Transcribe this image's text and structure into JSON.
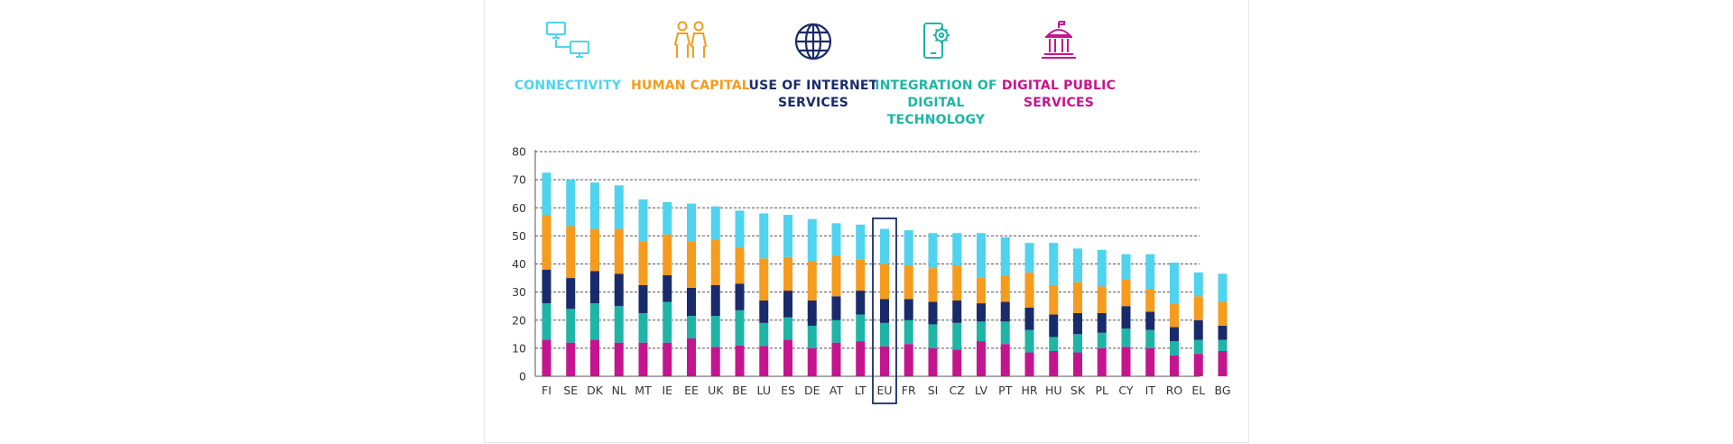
{
  "legend": {
    "items": [
      {
        "key": "connectivity",
        "label": "CONNECTIVITY",
        "color": "#4fd3ee",
        "icon": "connected-computers-icon"
      },
      {
        "key": "human_capital",
        "label": "HUMAN CAPITAL",
        "color": "#f59b1e",
        "icon": "people-icon"
      },
      {
        "key": "internet_services",
        "label": "USE OF INTERNET\nSERVICES",
        "color": "#1a2b6b",
        "icon": "globe-icon"
      },
      {
        "key": "digital_technology",
        "label": "INTEGRATION OF\nDIGITAL TECHNOLOGY",
        "color": "#1fb5a6",
        "icon": "smartphone-gear-icon"
      },
      {
        "key": "public_services",
        "label": "DIGITAL PUBLIC\nSERVICES",
        "color": "#c5158e",
        "icon": "government-building-icon"
      }
    ]
  },
  "chart_data": {
    "type": "bar",
    "stacked": true,
    "title": "",
    "xlabel": "",
    "ylabel": "",
    "ylim": [
      0,
      80
    ],
    "yticks": [
      0,
      10,
      20,
      30,
      40,
      50,
      60,
      70,
      80
    ],
    "grid": true,
    "legend_position": "top",
    "highlight_category": "EU",
    "categories": [
      "FI",
      "SE",
      "DK",
      "NL",
      "MT",
      "IE",
      "EE",
      "UK",
      "BE",
      "LU",
      "ES",
      "DE",
      "AT",
      "LT",
      "EU",
      "FR",
      "SI",
      "CZ",
      "LV",
      "PT",
      "HR",
      "HU",
      "SK",
      "PL",
      "CY",
      "IT",
      "RO",
      "EL",
      "BG"
    ],
    "series": [
      {
        "name": "DIGITAL PUBLIC SERVICES",
        "color": "#c5158e",
        "values": [
          13,
          12,
          13,
          12,
          12,
          12,
          13.5,
          10.5,
          11,
          10.8,
          13,
          10,
          12,
          12.5,
          10.7,
          11.5,
          10,
          9.5,
          12.5,
          11.5,
          8.5,
          9,
          8.5,
          10,
          10.5,
          10,
          7.5,
          8,
          9
        ]
      },
      {
        "name": "INTEGRATION OF DIGITAL TECHNOLOGY",
        "color": "#1fb5a6",
        "values": [
          13,
          12,
          13,
          13,
          10.5,
          14.5,
          8,
          11,
          12.5,
          8.2,
          8,
          8,
          8,
          9.5,
          8.3,
          8.5,
          8.5,
          9.5,
          7,
          8,
          8,
          5,
          6.5,
          5.5,
          6.5,
          6.5,
          5,
          5,
          4
        ]
      },
      {
        "name": "USE OF INTERNET SERVICES",
        "color": "#1a2b6b",
        "values": [
          12,
          11,
          11.5,
          11.5,
          10,
          9.5,
          10,
          11,
          9.5,
          8,
          9.5,
          9,
          8.5,
          8.5,
          8.5,
          7.5,
          8,
          8,
          6.5,
          7,
          8,
          8,
          7.5,
          7,
          8,
          6.5,
          5,
          7,
          5
        ]
      },
      {
        "name": "HUMAN CAPITAL",
        "color": "#f59b1e",
        "values": [
          19.5,
          18.5,
          15,
          16,
          15.5,
          14.5,
          16.5,
          16,
          13,
          15,
          12,
          14,
          14.5,
          11,
          12.5,
          12,
          12,
          12.5,
          9,
          9.5,
          12.5,
          10.5,
          11,
          9.5,
          9.5,
          8,
          8.5,
          8.5,
          8.5
        ]
      },
      {
        "name": "CONNECTIVITY",
        "color": "#4fd3ee",
        "values": [
          15,
          16.5,
          16.5,
          15.5,
          15,
          11.5,
          13.5,
          12,
          13,
          16,
          15,
          15,
          11.5,
          12.5,
          12.5,
          12.5,
          12.5,
          11.5,
          16,
          13.5,
          10.5,
          15,
          12,
          13,
          9,
          12.5,
          14.5,
          8.5,
          10
        ]
      }
    ]
  }
}
